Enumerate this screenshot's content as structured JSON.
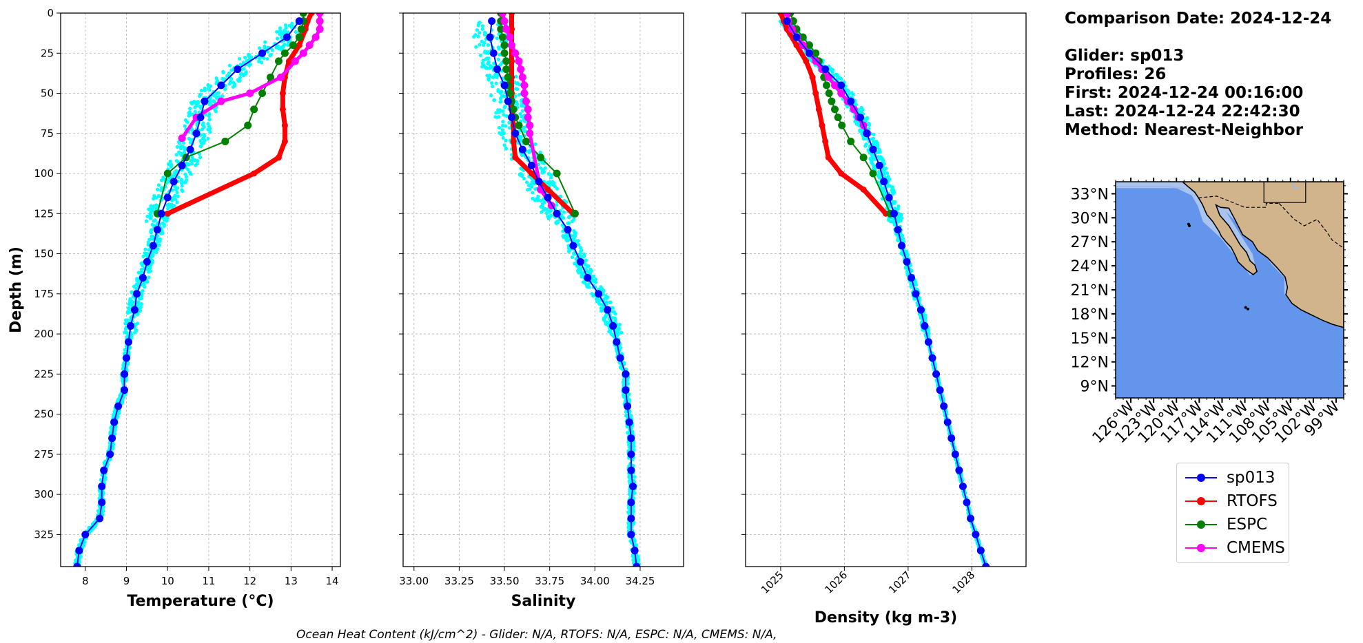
{
  "info": {
    "comparison": "Comparison Date: 2024-12-24",
    "glider": "Glider: sp013",
    "profiles": "Profiles: 26",
    "first": "First: 2024-12-24 00:16:00",
    "last": "Last: 2024-12-24 22:42:30",
    "method": "Method: Nearest-Neighbor"
  },
  "footer": "Ocean Heat Content (kJ/cm^2) - Glider: N/A,  RTOFS: N/A,  ESPC: N/A,  CMEMS: N/A,",
  "colors": {
    "glider": "#0000ff",
    "rtofs": "#ff0000",
    "espc": "#008000",
    "cmems": "#ff00ff",
    "scatter": "#00ffff",
    "ocean": "#6495ed",
    "shelf": "#aac4ee",
    "land": "#d2b48c"
  },
  "legend": [
    {
      "name": "sp013",
      "color": "#0000ff"
    },
    {
      "name": "RTOFS",
      "color": "#ff0000"
    },
    {
      "name": "ESPC",
      "color": "#008000"
    },
    {
      "name": "CMEMS",
      "color": "#ff00ff"
    }
  ],
  "map": {
    "lat_ticks": [
      "33°N",
      "30°N",
      "27°N",
      "24°N",
      "21°N",
      "18°N",
      "15°N",
      "12°N",
      "9°N"
    ],
    "lon_ticks": [
      "126°W",
      "123°W",
      "120°W",
      "117°W",
      "114°W",
      "111°W",
      "108°W",
      "105°W",
      "102°W",
      "99°W"
    ]
  },
  "chart_data": [
    {
      "type": "line",
      "xlabel": "Temperature (°C)",
      "ylabel": "Depth (m)",
      "xlim": [
        7.4,
        14.2
      ],
      "ylim": [
        345,
        0
      ],
      "x_ticks": [
        8,
        9,
        10,
        11,
        12,
        13,
        14
      ],
      "y_ticks": [
        0,
        25,
        50,
        75,
        100,
        125,
        150,
        175,
        200,
        225,
        250,
        275,
        300,
        325
      ],
      "grid": true,
      "series": [
        {
          "name": "sp013",
          "depth": [
            5,
            15,
            25,
            35,
            45,
            55,
            65,
            75,
            85,
            95,
            105,
            115,
            125,
            135,
            145,
            155,
            165,
            175,
            185,
            195,
            205,
            215,
            225,
            235,
            245,
            255,
            265,
            275,
            285,
            295,
            305,
            315,
            325,
            335,
            345
          ],
          "values": [
            13.2,
            12.9,
            12.3,
            11.7,
            11.3,
            10.9,
            10.8,
            10.7,
            10.55,
            10.35,
            10.15,
            10.0,
            9.85,
            9.75,
            9.65,
            9.5,
            9.4,
            9.25,
            9.2,
            9.1,
            9.05,
            9.0,
            8.95,
            8.95,
            8.8,
            8.7,
            8.65,
            8.6,
            8.45,
            8.4,
            8.4,
            8.35,
            8.0,
            7.85,
            7.8
          ]
        },
        {
          "name": "RTOFS",
          "depth": [
            0,
            5,
            10,
            20,
            30,
            40,
            50,
            60,
            70,
            80,
            90,
            100,
            125
          ],
          "values": [
            13.5,
            13.4,
            13.35,
            13.2,
            12.95,
            12.85,
            12.8,
            12.8,
            12.85,
            12.85,
            12.7,
            12.1,
            10.0
          ]
        },
        {
          "name": "ESPC",
          "depth": [
            0,
            5,
            10,
            15,
            20,
            25,
            30,
            40,
            50,
            60,
            70,
            80,
            90,
            100,
            125
          ],
          "values": [
            13.3,
            13.3,
            13.25,
            13.2,
            13.05,
            12.85,
            12.7,
            12.5,
            12.3,
            12.1,
            11.95,
            11.4,
            10.45,
            10.0,
            9.75
          ]
        },
        {
          "name": "CMEMS",
          "depth": [
            0,
            5,
            10,
            15,
            20,
            25,
            30,
            40,
            50,
            55,
            65,
            78
          ],
          "values": [
            13.7,
            13.7,
            13.7,
            13.6,
            13.45,
            13.3,
            13.1,
            12.75,
            12.0,
            11.3,
            10.7,
            10.35
          ]
        }
      ]
    },
    {
      "type": "line",
      "xlabel": "Salinity",
      "ylim": [
        345,
        0
      ],
      "xlim": [
        32.94,
        34.49
      ],
      "x_ticks": [
        33.0,
        33.25,
        33.5,
        33.75,
        34.0,
        34.25
      ],
      "grid": true,
      "series": [
        {
          "name": "sp013",
          "depth": [
            5,
            15,
            25,
            35,
            45,
            55,
            65,
            75,
            85,
            95,
            105,
            115,
            125,
            135,
            145,
            155,
            165,
            175,
            185,
            195,
            205,
            215,
            225,
            235,
            245,
            255,
            265,
            275,
            285,
            295,
            305,
            315,
            325,
            335,
            345
          ],
          "values": [
            33.43,
            33.42,
            33.44,
            33.46,
            33.5,
            33.52,
            33.54,
            33.56,
            33.6,
            33.65,
            33.69,
            33.74,
            33.79,
            33.85,
            33.88,
            33.92,
            33.96,
            34.02,
            34.07,
            34.1,
            34.12,
            34.14,
            34.17,
            34.17,
            34.18,
            34.19,
            34.2,
            34.2,
            34.2,
            34.21,
            34.2,
            34.2,
            34.2,
            34.22,
            34.23
          ]
        },
        {
          "name": "RTOFS",
          "depth": [
            0,
            10,
            20,
            30,
            40,
            50,
            60,
            70,
            80,
            90,
            100,
            110,
            125
          ],
          "values": [
            33.54,
            33.54,
            33.54,
            33.54,
            33.54,
            33.54,
            33.54,
            33.55,
            33.55,
            33.56,
            33.65,
            33.74,
            33.88
          ]
        },
        {
          "name": "ESPC",
          "depth": [
            0,
            5,
            10,
            15,
            20,
            25,
            30,
            35,
            40,
            45,
            50,
            55,
            60,
            65,
            70,
            80,
            90,
            100,
            125
          ],
          "values": [
            33.48,
            33.48,
            33.48,
            33.49,
            33.5,
            33.5,
            33.51,
            33.51,
            33.52,
            33.52,
            33.53,
            33.54,
            33.55,
            33.56,
            33.58,
            33.62,
            33.7,
            33.79,
            33.89
          ]
        },
        {
          "name": "CMEMS",
          "depth": [
            0,
            5,
            10,
            15,
            20,
            25,
            30,
            35,
            40,
            45,
            50,
            55,
            60,
            65,
            70,
            75,
            110,
            120
          ],
          "values": [
            33.49,
            33.5,
            33.51,
            33.53,
            33.54,
            33.56,
            33.58,
            33.59,
            33.6,
            33.61,
            33.61,
            33.62,
            33.63,
            33.63,
            33.64,
            33.64,
            33.7,
            33.76
          ]
        }
      ]
    },
    {
      "type": "line",
      "xlabel": "Density (kg m-3)",
      "ylim": [
        345,
        0
      ],
      "xlim": [
        1024.45,
        1028.85
      ],
      "x_ticks": [
        1025,
        1026,
        1027,
        1028
      ],
      "grid": true,
      "series": [
        {
          "name": "sp013",
          "depth": [
            5,
            15,
            25,
            35,
            45,
            55,
            65,
            75,
            85,
            95,
            105,
            115,
            125,
            135,
            145,
            155,
            165,
            175,
            185,
            195,
            205,
            215,
            225,
            235,
            245,
            255,
            265,
            275,
            285,
            295,
            305,
            315,
            325,
            335,
            345
          ],
          "values": [
            1025.1,
            1025.25,
            1025.45,
            1025.7,
            1025.95,
            1026.1,
            1026.25,
            1026.35,
            1026.45,
            1026.55,
            1026.62,
            1026.7,
            1026.78,
            1026.84,
            1026.9,
            1026.98,
            1027.05,
            1027.12,
            1027.2,
            1027.26,
            1027.32,
            1027.38,
            1027.44,
            1027.5,
            1027.56,
            1027.62,
            1027.68,
            1027.74,
            1027.8,
            1027.86,
            1027.92,
            1027.98,
            1028.06,
            1028.14,
            1028.22
          ]
        },
        {
          "name": "RTOFS",
          "depth": [
            0,
            5,
            10,
            20,
            30,
            40,
            50,
            60,
            70,
            80,
            90,
            100,
            110,
            125
          ],
          "values": [
            1025.0,
            1025.05,
            1025.1,
            1025.25,
            1025.4,
            1025.5,
            1025.55,
            1025.6,
            1025.65,
            1025.7,
            1025.75,
            1025.95,
            1026.3,
            1026.65
          ]
        },
        {
          "name": "ESPC",
          "depth": [
            0,
            5,
            10,
            15,
            20,
            25,
            30,
            35,
            40,
            45,
            50,
            55,
            60,
            65,
            70,
            80,
            90,
            100,
            125
          ],
          "values": [
            1025.15,
            1025.2,
            1025.25,
            1025.35,
            1025.45,
            1025.55,
            1025.6,
            1025.65,
            1025.68,
            1025.72,
            1025.76,
            1025.8,
            1025.85,
            1025.9,
            1025.96,
            1026.1,
            1026.3,
            1026.45,
            1026.72
          ]
        },
        {
          "name": "CMEMS",
          "depth": [
            0,
            5,
            10,
            15,
            20,
            25,
            30,
            35,
            40,
            45,
            50,
            55,
            60,
            65,
            70,
            75
          ],
          "values": [
            1025.1,
            1025.12,
            1025.18,
            1025.26,
            1025.35,
            1025.45,
            1025.55,
            1025.65,
            1025.75,
            1025.85,
            1025.95,
            1026.05,
            1026.15,
            1026.22,
            1026.3,
            1026.36
          ]
        }
      ]
    }
  ]
}
